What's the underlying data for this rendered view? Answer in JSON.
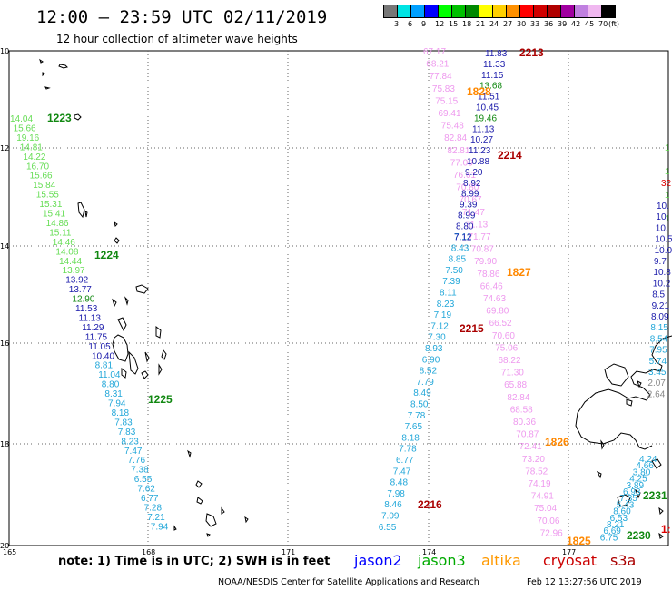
{
  "header": {
    "title": "12:00 – 23:59 UTC 02/11/2019",
    "subtitle": "12 hour collection of altimeter wave heights"
  },
  "legend": {
    "colors": [
      "#777777",
      "#00e4e4",
      "#00a0ff",
      "#0000ff",
      "#00ff00",
      "#00c000",
      "#008800",
      "#ffff00",
      "#ffd000",
      "#ff9000",
      "#ff0000",
      "#d00000",
      "#b00000",
      "#a000a0",
      "#c080e0",
      "#f0b8f0",
      "#000000"
    ],
    "labels": [
      "3",
      "6",
      "9",
      "12",
      "15",
      "18",
      "21",
      "24",
      "27",
      "30",
      "33",
      "36",
      "39",
      "42",
      "45",
      "70",
      "(ft)"
    ]
  },
  "axes": {
    "lat_labels": [
      "10",
      "12",
      "14",
      "16",
      "18",
      "20"
    ],
    "lon_labels": [
      "165",
      "168",
      "171",
      "174",
      "177"
    ]
  },
  "tracks": {
    "track_a": {
      "color_low": "#22a7d9",
      "values": [
        "14.04",
        "15.66",
        "19.16",
        "14.81",
        "14.22",
        "16.70",
        "15.66",
        "15.84",
        "15.55",
        "15.31",
        "15.41",
        "14.86",
        "15.11",
        "14.46",
        "14.08",
        "14.44",
        "13.97",
        "13.92",
        "13.77",
        "12.90",
        "11.53",
        "11.13",
        "11.29",
        "11.75",
        "11.05",
        "10.40",
        "8.81",
        "11.04",
        "8.80",
        "8.31",
        "7.94",
        "8.18",
        "7.83",
        "7.83",
        "8.23",
        "7.47",
        "7.76",
        "7.38",
        "6.55",
        "7.62",
        "6.77",
        "7.28",
        "7.21",
        "7.94"
      ],
      "time_labels": [
        "1223",
        "1224",
        "1225"
      ]
    },
    "track_b": {
      "values": [
        "7.12",
        "8.43",
        "8.85",
        "7.50",
        "7.39",
        "8.11",
        "8.23",
        "7.19",
        "7.12",
        "7.30",
        "8.93",
        "6.90",
        "8.52",
        "7.79",
        "8.49",
        "8.50",
        "7.78",
        "7.65",
        "8.18",
        "7.78",
        "6.77",
        "7.47",
        "8.48",
        "7.98",
        "8.46",
        "7.09",
        "6.55"
      ],
      "time_label": "2216"
    },
    "track_c": {
      "values": [
        "67.17",
        "68.21",
        "77.84",
        "75.83",
        "75.15",
        "69.41",
        "75.48",
        "82.84",
        "82.81",
        "77.06",
        "76.61",
        "70.80",
        "70.67",
        "71.47",
        "71.13",
        "71.77",
        "70.87",
        "79.90",
        "78.86",
        "66.46",
        "74.63",
        "69.80",
        "66.52",
        "70.60",
        "75.06",
        "68.22",
        "71.30",
        "65.88",
        "82.84",
        "68.58",
        "80.36",
        "70.87",
        "72.41",
        "73.20",
        "78.52",
        "74.19",
        "74.91",
        "75.04",
        "70.06",
        "72.96"
      ],
      "time_labels": [
        "1827",
        "1826",
        "1825"
      ]
    },
    "track_d": {
      "values": [
        "11.83",
        "11.33",
        "11.15",
        "13.68",
        "11.51",
        "10.45",
        "19.46",
        "11.13",
        "10.27",
        "11.23",
        "10.88",
        "9.20",
        "8.92",
        "8.99",
        "9.39",
        "8.99",
        "8.80",
        "7.12"
      ],
      "time_labels": [
        "2213",
        "1828",
        "2214",
        "2215"
      ]
    },
    "track_e": {
      "values": [
        "10.",
        "10.",
        "10.",
        "10.5",
        "10.0",
        "9.7",
        "10.8",
        "10.2",
        "8.5",
        "9.21",
        "8.09",
        "8.15",
        "8.54",
        "7.95",
        "5.74",
        "3.45",
        "2.07",
        "2.64"
      ],
      "green_values": [
        "1",
        "1",
        "1",
        "1"
      ],
      "red_values": [
        "32"
      ]
    },
    "track_f": {
      "values": [
        "4.24",
        "4.66",
        "3.80",
        "4.25",
        "3.89",
        "6.93",
        "7.35",
        "5.43",
        "8.60",
        "6.53",
        "8.21",
        "6.69",
        "6.75"
      ],
      "time_labels": [
        "2231",
        "2230",
        "1:"
      ]
    }
  },
  "footer": {
    "note": "note: 1) Time is in UTC; 2) SWH is in feet",
    "satellites": [
      {
        "name": "jason2",
        "color": "#0000ff"
      },
      {
        "name": "jason3",
        "color": "#00aa00"
      },
      {
        "name": "altika",
        "color": "#ff9900"
      },
      {
        "name": "cryosat",
        "color": "#cc0000"
      },
      {
        "name": "s3a",
        "color": "#aa0000"
      }
    ],
    "credit": "NOAA/NESDIS Center for Satellite Applications and Research",
    "timestamp": "Feb 12 13:27:56 UTC 2019"
  }
}
